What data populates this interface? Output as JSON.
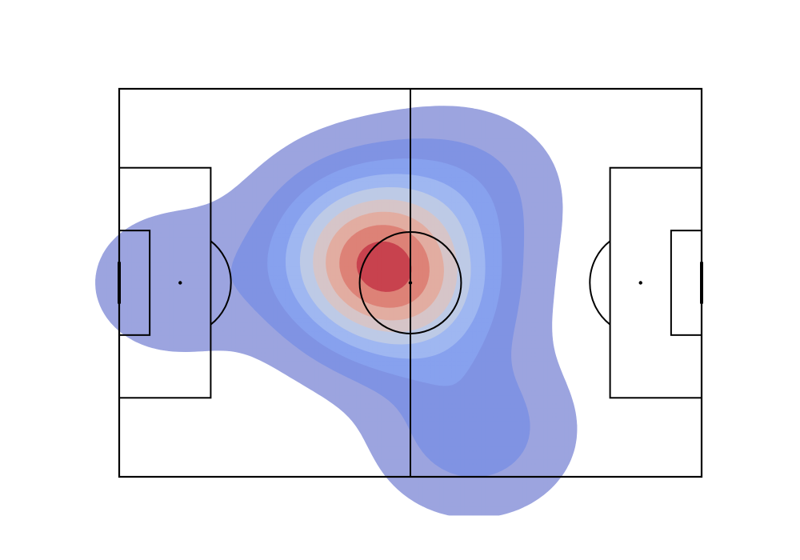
{
  "chart_data": {
    "type": "heatmap",
    "subtype": "kde-contour",
    "title": "",
    "xlabel": "",
    "ylabel": "",
    "pitch": {
      "length": 105,
      "width": 68,
      "line_color": "#000000",
      "background": "#ffffff"
    },
    "xlim": [
      0,
      105
    ],
    "ylim": [
      0,
      68
    ],
    "colormap": [
      "#3b4cc0",
      "#7396f5",
      "#aac7fd",
      "#dcdddd",
      "#f7b89c",
      "#e7745b",
      "#b40426"
    ],
    "levels": 9,
    "fill_opacity": 0.5,
    "density_peaks": [
      {
        "x": 46,
        "y": 34,
        "weight": 1.0
      },
      {
        "x": 44,
        "y": 25,
        "weight": 0.8
      },
      {
        "x": 56,
        "y": 37,
        "weight": 0.55
      },
      {
        "x": 64,
        "y": 60,
        "weight": 0.5
      },
      {
        "x": 62,
        "y": 18,
        "weight": 0.4
      },
      {
        "x": 10,
        "y": 34,
        "weight": 0.3
      }
    ]
  }
}
